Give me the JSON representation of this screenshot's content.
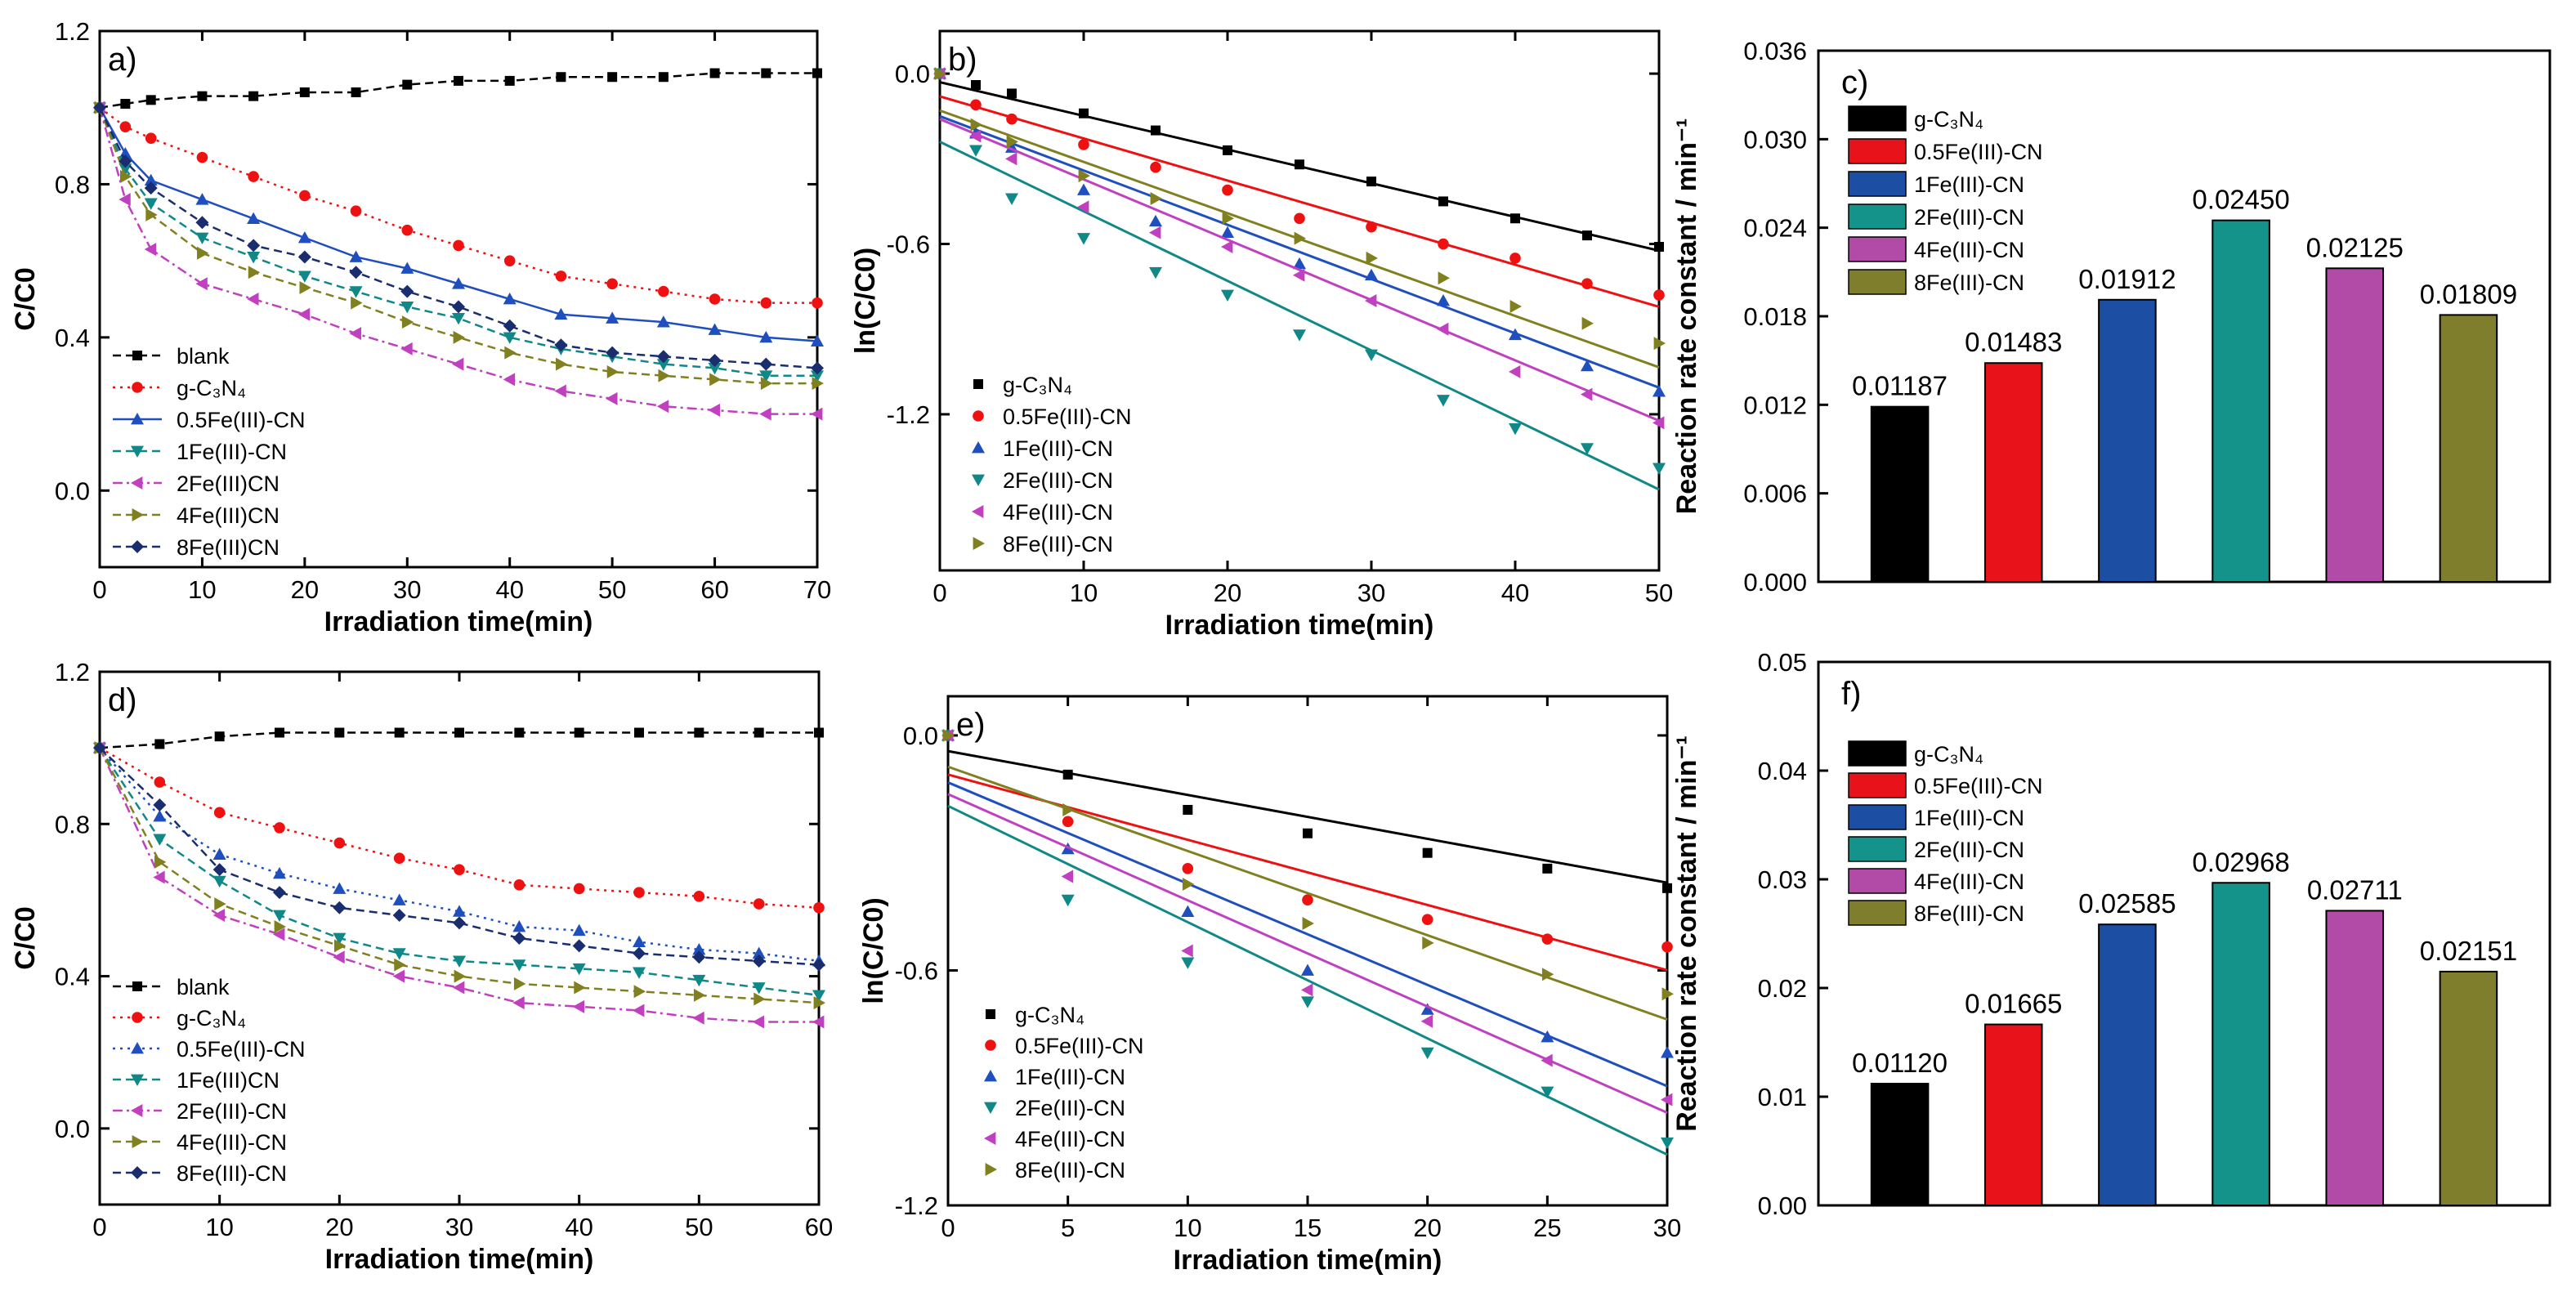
{
  "chart_data": [
    {
      "panel": "a)",
      "type": "line",
      "xlabel": "Irradiation time(min)",
      "ylabel": "C/C0",
      "xlim": [
        0,
        70
      ],
      "ylim": [
        -0.2,
        1.2
      ],
      "xticks": [
        0,
        10,
        20,
        30,
        40,
        50,
        60,
        70
      ],
      "yticks": [
        0.0,
        0.4,
        0.8,
        1.2
      ],
      "x": [
        0,
        2.5,
        5,
        10,
        15,
        20,
        25,
        30,
        35,
        40,
        45,
        50,
        55,
        60,
        65,
        70
      ],
      "series": [
        {
          "name": "blank",
          "marker": "square",
          "dash": "dashes",
          "color": "#000000",
          "values": [
            1.0,
            1.01,
            1.02,
            1.03,
            1.03,
            1.04,
            1.04,
            1.06,
            1.07,
            1.07,
            1.08,
            1.08,
            1.08,
            1.09,
            1.09,
            1.09
          ]
        },
        {
          "name": "g-C₃N₄",
          "marker": "circle",
          "dash": "dots",
          "color": "#ee1111",
          "values": [
            1.0,
            0.95,
            0.92,
            0.87,
            0.82,
            0.77,
            0.73,
            0.68,
            0.64,
            0.6,
            0.56,
            0.54,
            0.52,
            0.5,
            0.49,
            0.49
          ]
        },
        {
          "name": "0.5Fe(III)-CN",
          "marker": "triangle-up",
          "dash": "solid",
          "color": "#1f4fbf",
          "values": [
            1.0,
            0.88,
            0.81,
            0.76,
            0.71,
            0.66,
            0.61,
            0.58,
            0.54,
            0.5,
            0.46,
            0.45,
            0.44,
            0.42,
            0.4,
            0.39
          ]
        },
        {
          "name": "1Fe(III)-CN",
          "marker": "triangle-down",
          "dash": "dashes",
          "color": "#118888",
          "values": [
            1.0,
            0.84,
            0.75,
            0.66,
            0.61,
            0.56,
            0.52,
            0.48,
            0.45,
            0.4,
            0.37,
            0.35,
            0.33,
            0.32,
            0.3,
            0.3
          ]
        },
        {
          "name": "2Fe(III)CN",
          "marker": "triangle-left",
          "dash": "dashdot",
          "color": "#c040c0",
          "values": [
            1.0,
            0.76,
            0.63,
            0.54,
            0.5,
            0.46,
            0.41,
            0.37,
            0.33,
            0.29,
            0.26,
            0.24,
            0.22,
            0.21,
            0.2,
            0.2
          ]
        },
        {
          "name": "4Fe(III)CN",
          "marker": "triangle-right",
          "dash": "dashes",
          "color": "#808020",
          "values": [
            1.0,
            0.82,
            0.72,
            0.62,
            0.57,
            0.53,
            0.49,
            0.44,
            0.4,
            0.36,
            0.33,
            0.31,
            0.3,
            0.29,
            0.28,
            0.28
          ]
        },
        {
          "name": "8Fe(III)CN",
          "marker": "diamond",
          "dash": "dashes",
          "color": "#1a2d6e",
          "values": [
            1.0,
            0.86,
            0.79,
            0.7,
            0.64,
            0.61,
            0.57,
            0.52,
            0.48,
            0.43,
            0.38,
            0.36,
            0.35,
            0.34,
            0.33,
            0.32
          ]
        }
      ]
    },
    {
      "panel": "b)",
      "type": "scatter_fit",
      "xlabel": "Irradiation time(min)",
      "ylabel": "ln(C/C0)",
      "xlim": [
        0,
        50
      ],
      "ylim": [
        -1.75,
        0.15
      ],
      "xticks": [
        0,
        10,
        20,
        30,
        40,
        50
      ],
      "yticks": [
        0.0,
        -0.6,
        -1.2
      ],
      "x": [
        0,
        2.5,
        5,
        10,
        15,
        20,
        25,
        30,
        35,
        40,
        45,
        50
      ],
      "series": [
        {
          "name": "g-C₃N₄",
          "marker": "square",
          "color": "#000000",
          "fit": [
            -0.03,
            -0.01187
          ],
          "values": [
            0.0,
            -0.04,
            -0.07,
            -0.14,
            -0.2,
            -0.27,
            -0.32,
            -0.38,
            -0.45,
            -0.51,
            -0.57,
            -0.61
          ]
        },
        {
          "name": "0.5Fe(III)-CN",
          "marker": "circle",
          "color": "#ee1111",
          "fit": [
            -0.08,
            -0.01483
          ],
          "values": [
            0.0,
            -0.11,
            -0.16,
            -0.25,
            -0.33,
            -0.41,
            -0.51,
            -0.54,
            -0.6,
            -0.65,
            -0.74,
            -0.78
          ]
        },
        {
          "name": "1Fe(III)-CN",
          "marker": "triangle-up",
          "color": "#1f4fbf",
          "fit": [
            -0.15,
            -0.01912
          ],
          "values": [
            0.0,
            -0.21,
            -0.26,
            -0.41,
            -0.52,
            -0.56,
            -0.67,
            -0.71,
            -0.8,
            -0.92,
            -1.03,
            -1.12
          ]
        },
        {
          "name": "2Fe(III)-CN",
          "marker": "triangle-down",
          "color": "#118888",
          "fit": [
            -0.24,
            -0.0245
          ],
          "values": [
            0.0,
            -0.27,
            -0.44,
            -0.58,
            -0.7,
            -0.78,
            -0.92,
            -0.99,
            -1.15,
            -1.25,
            -1.32,
            -1.39
          ]
        },
        {
          "name": "4Fe(III)-CN",
          "marker": "triangle-left",
          "color": "#c040c0",
          "fit": [
            -0.16,
            -0.02125
          ],
          "values": [
            0.0,
            -0.22,
            -0.3,
            -0.47,
            -0.56,
            -0.61,
            -0.71,
            -0.8,
            -0.9,
            -1.05,
            -1.13,
            -1.23
          ]
        },
        {
          "name": "8Fe(III)-CN",
          "marker": "triangle-right",
          "color": "#808020",
          "fit": [
            -0.13,
            -0.01809
          ],
          "values": [
            0.0,
            -0.18,
            -0.24,
            -0.36,
            -0.44,
            -0.51,
            -0.58,
            -0.65,
            -0.72,
            -0.82,
            -0.88,
            -0.95
          ]
        }
      ]
    },
    {
      "panel": "c)",
      "type": "bar",
      "ylabel": "Reaction rate constant / min⁻¹",
      "ylim": [
        0,
        0.036
      ],
      "yticks": [
        "0.000",
        "0.006",
        "0.012",
        "0.018",
        "0.024",
        "0.030",
        "0.036"
      ],
      "categories": [
        "g-C₃N₄",
        "0.5Fe(III)-CN",
        "1Fe(III)-CN",
        "2Fe(III)-CN",
        "4Fe(III)-CN",
        "8Fe(III)-CN"
      ],
      "values": [
        0.01187,
        0.01483,
        0.01912,
        0.0245,
        0.02125,
        0.01809
      ],
      "labels": [
        "0.01187",
        "0.01483",
        "0.01912",
        "0.02450",
        "0.02125",
        "0.01809"
      ],
      "colors": [
        "#000000",
        "#e8121a",
        "#1c4ea3",
        "#14938a",
        "#b24aa8",
        "#7e7e2c"
      ]
    },
    {
      "panel": "d)",
      "type": "line",
      "xlabel": "Irradiation time(min)",
      "ylabel": "C/C0",
      "xlim": [
        0,
        60
      ],
      "ylim": [
        -0.2,
        1.2
      ],
      "xticks": [
        0,
        10,
        20,
        30,
        40,
        50,
        60
      ],
      "yticks": [
        0.0,
        0.4,
        0.8,
        1.2
      ],
      "x": [
        0,
        5,
        10,
        15,
        20,
        25,
        30,
        35,
        40,
        45,
        50,
        55,
        60
      ],
      "series": [
        {
          "name": "blank",
          "marker": "square",
          "dash": "dashes",
          "color": "#000000",
          "values": [
            1.0,
            1.01,
            1.03,
            1.04,
            1.04,
            1.04,
            1.04,
            1.04,
            1.04,
            1.04,
            1.04,
            1.04,
            1.04
          ]
        },
        {
          "name": "g-C₃N₄",
          "marker": "circle",
          "dash": "dots",
          "color": "#ee1111",
          "values": [
            1.0,
            0.91,
            0.83,
            0.79,
            0.75,
            0.71,
            0.68,
            0.64,
            0.63,
            0.62,
            0.61,
            0.59,
            0.58
          ]
        },
        {
          "name": "0.5Fe(III)-CN",
          "marker": "triangle-up",
          "dash": "dots",
          "color": "#1f4fbf",
          "values": [
            1.0,
            0.82,
            0.72,
            0.67,
            0.63,
            0.6,
            0.57,
            0.53,
            0.52,
            0.49,
            0.47,
            0.46,
            0.44
          ]
        },
        {
          "name": "1Fe(III)CN",
          "marker": "triangle-down",
          "dash": "dashes",
          "color": "#118888",
          "values": [
            1.0,
            0.76,
            0.65,
            0.56,
            0.5,
            0.46,
            0.44,
            0.43,
            0.42,
            0.41,
            0.39,
            0.37,
            0.35
          ]
        },
        {
          "name": "2Fe(III)-CN",
          "marker": "triangle-left",
          "dash": "dashdot",
          "color": "#c040c0",
          "values": [
            1.0,
            0.66,
            0.56,
            0.51,
            0.45,
            0.4,
            0.37,
            0.33,
            0.32,
            0.31,
            0.29,
            0.28,
            0.28
          ]
        },
        {
          "name": "4Fe(III)-CN",
          "marker": "triangle-right",
          "dash": "dashes",
          "color": "#808020",
          "values": [
            1.0,
            0.7,
            0.59,
            0.53,
            0.48,
            0.43,
            0.4,
            0.38,
            0.37,
            0.36,
            0.35,
            0.34,
            0.33
          ]
        },
        {
          "name": "8Fe(III)-CN",
          "marker": "diamond",
          "dash": "dashes",
          "color": "#1a2d6e",
          "values": [
            1.0,
            0.85,
            0.68,
            0.62,
            0.58,
            0.56,
            0.54,
            0.5,
            0.48,
            0.46,
            0.45,
            0.44,
            0.43
          ]
        }
      ]
    },
    {
      "panel": "e)",
      "type": "scatter_fit",
      "xlabel": "Irradiation time(min)",
      "ylabel": "ln(C/C0)",
      "xlim": [
        0,
        30
      ],
      "ylim": [
        -1.2,
        0.1
      ],
      "xticks": [
        0,
        5,
        10,
        15,
        20,
        25,
        30
      ],
      "yticks": [
        0.0,
        -0.6,
        -1.2
      ],
      "x": [
        0,
        5,
        10,
        15,
        20,
        25,
        30
      ],
      "series": [
        {
          "name": "g-C₃N₄",
          "marker": "square",
          "color": "#000000",
          "fit": [
            -0.04,
            -0.0112
          ],
          "values": [
            0.0,
            -0.1,
            -0.19,
            -0.25,
            -0.3,
            -0.34,
            -0.39
          ]
        },
        {
          "name": "0.5Fe(III)-CN",
          "marker": "circle",
          "color": "#ee1111",
          "fit": [
            -0.1,
            -0.01665
          ],
          "values": [
            0.0,
            -0.22,
            -0.34,
            -0.42,
            -0.47,
            -0.52,
            -0.54
          ]
        },
        {
          "name": "1Fe(III)-CN",
          "marker": "triangle-up",
          "color": "#1f4fbf",
          "fit": [
            -0.12,
            -0.02585
          ],
          "values": [
            0.0,
            -0.29,
            -0.45,
            -0.6,
            -0.7,
            -0.77,
            -0.81
          ]
        },
        {
          "name": "2Fe(III)-CN",
          "marker": "triangle-down",
          "color": "#118888",
          "fit": [
            -0.18,
            -0.02968
          ],
          "values": [
            0.0,
            -0.42,
            -0.58,
            -0.68,
            -0.81,
            -0.91,
            -1.04
          ]
        },
        {
          "name": "4Fe(III)-CN",
          "marker": "triangle-left",
          "color": "#c040c0",
          "fit": [
            -0.15,
            -0.02711
          ],
          "values": [
            0.0,
            -0.36,
            -0.55,
            -0.65,
            -0.73,
            -0.83,
            -0.93
          ]
        },
        {
          "name": "8Fe(III)-CN",
          "marker": "triangle-right",
          "color": "#808020",
          "fit": [
            -0.08,
            -0.02151
          ],
          "values": [
            0.0,
            -0.19,
            -0.38,
            -0.48,
            -0.53,
            -0.61,
            -0.66
          ]
        }
      ]
    },
    {
      "panel": "f)",
      "type": "bar",
      "ylabel": "Reaction rate constant / min⁻¹",
      "ylim": [
        0,
        0.05
      ],
      "yticks": [
        "0.00",
        "0.01",
        "0.02",
        "0.03",
        "0.04",
        "0.05"
      ],
      "categories": [
        "g-C₃N₄",
        "0.5Fe(III)-CN",
        "1Fe(III)-CN",
        "2Fe(III)-CN",
        "4Fe(III)-CN",
        "8Fe(III)-CN"
      ],
      "values": [
        0.0112,
        0.01665,
        0.02585,
        0.02968,
        0.02711,
        0.02151
      ],
      "labels": [
        "0.01120",
        "0.01665",
        "0.02585",
        "0.02968",
        "0.02711",
        "0.02151"
      ],
      "colors": [
        "#000000",
        "#e8121a",
        "#1c4ea3",
        "#14938a",
        "#b24aa8",
        "#7e7e2c"
      ]
    }
  ]
}
